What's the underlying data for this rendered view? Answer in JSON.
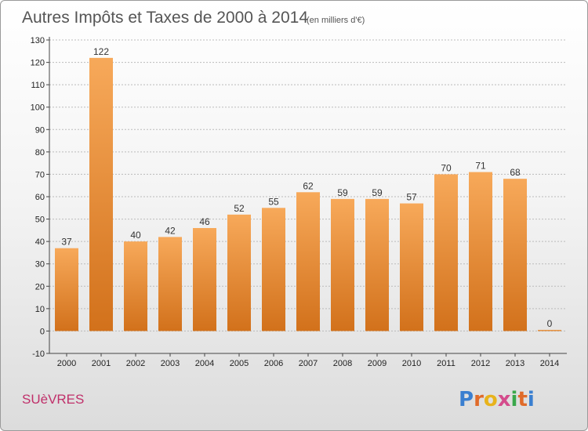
{
  "chart_data": {
    "type": "bar",
    "title": "Autres Impôts et Taxes de 2000 à 2014",
    "subtitle": "(en milliers d'€)",
    "categories": [
      "2000",
      "2001",
      "2002",
      "2003",
      "2004",
      "2005",
      "2006",
      "2007",
      "2008",
      "2009",
      "2010",
      "2011",
      "2012",
      "2013",
      "2014"
    ],
    "values": [
      37,
      122,
      40,
      42,
      46,
      52,
      55,
      62,
      59,
      59,
      57,
      70,
      71,
      68,
      0
    ],
    "value_labels": [
      "37",
      "122",
      "40",
      "42",
      "46",
      "52",
      "55",
      "62",
      "59",
      "59",
      "57",
      "70",
      "71",
      "68",
      "0"
    ],
    "y_ticks": [
      "-10",
      "0",
      "10",
      "20",
      "30",
      "40",
      "50",
      "60",
      "70",
      "80",
      "90",
      "100",
      "110",
      "120",
      "130"
    ],
    "ylim": [
      -10,
      130
    ],
    "ystep": 10,
    "grid": true,
    "xlabel": "",
    "ylabel": "",
    "bar_color_light": "#f7a95a",
    "bar_color_dark": "#d2711b"
  },
  "footer": {
    "commune": "SUèVRES",
    "logo": "Proxiti"
  }
}
